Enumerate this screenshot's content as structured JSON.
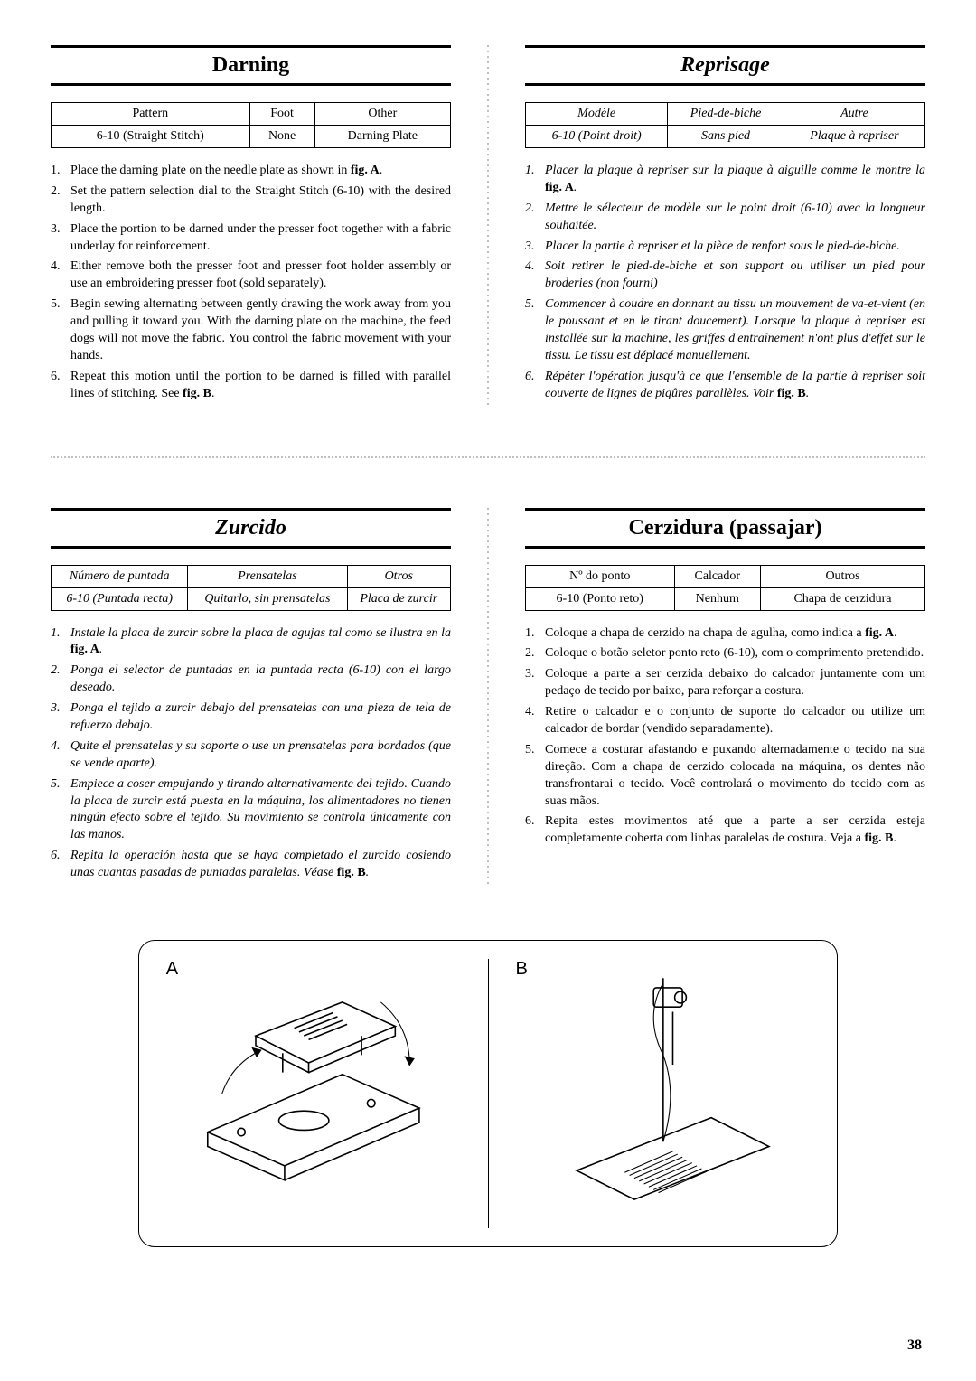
{
  "sections": {
    "darning": {
      "title": "Darning",
      "title_style": "normal",
      "table_style": "normal",
      "steps_style": "normal",
      "table": {
        "headers": [
          "Pattern",
          "Foot",
          "Other"
        ],
        "row": [
          "6-10  (Straight Stitch)",
          "None",
          "Darning Plate"
        ]
      },
      "steps": [
        "Place the darning plate on the needle plate as shown in <b>fig. A</b>.",
        "Set the pattern selection dial to the Straight Stitch (6-10) with the desired length.",
        "Place the portion to be darned under the presser foot together with a fabric underlay for reinforcement.",
        "Either remove both the presser foot and presser foot holder assembly or use an embroidering presser foot (sold separately).",
        "Begin sewing alternating between gently drawing the work away from you and pulling it toward you. With the darning plate on the machine, the feed dogs will not move the fabric. You control the fabric movement with your hands.",
        "Repeat this motion until the portion to be darned is filled with parallel lines of stitching. See <b>fig. B</b>."
      ]
    },
    "reprisage": {
      "title": "Reprisage",
      "title_style": "italic",
      "table_style": "italic",
      "steps_style": "italic",
      "table": {
        "headers": [
          "Modèle",
          "Pied-de-biche",
          "Autre"
        ],
        "row": [
          "6-10  (Point droit)",
          "Sans pied",
          "Plaque à repriser"
        ]
      },
      "steps": [
        "Placer la plaque à repriser sur la plaque à aiguille comme le montre la <b>fig. A</b>.",
        "Mettre le sélecteur de modèle sur le point droit (6-10) avec la longueur souhaitée.",
        "Placer la partie à repriser et la pièce de renfort sous le pied-de-biche.",
        "Soit retirer le pied-de-biche et son support ou utiliser un pied pour broderies (non fourni)",
        "Commencer à coudre en donnant au tissu un mouvement de va-et-vient (en le poussant et en le tirant doucement). Lorsque la plaque à repriser est installée sur la machine, les griffes d'entraînement n'ont plus d'effet sur le tissu. Le tissu est déplacé manuellement.",
        "Répéter l'opération jusqu'à ce que l'ensemble de la partie à repriser soit couverte de lignes de piqûres parallèles. Voir <b>fig. B</b>."
      ]
    },
    "zurcido": {
      "title": "Zurcido",
      "title_style": "italic",
      "table_style": "italic",
      "steps_style": "italic",
      "table": {
        "headers": [
          "Número de puntada",
          "Prensatelas",
          "Otros"
        ],
        "row": [
          "6-10  (Puntada recta)",
          "Quitarlo, sin prensatelas",
          "Placa de zurcir"
        ]
      },
      "steps": [
        "Instale la placa de zurcir sobre la placa de agujas tal como se ilustra en la <b>fig. A</b>.",
        "Ponga el selector de puntadas en la puntada recta (6-10) con el largo deseado.",
        "Ponga el tejido a zurcir debajo del prensatelas con una pieza de tela de refuerzo debajo.",
        "Quite el prensatelas y su soporte o use un prensatelas para bordados (que se vende aparte).",
        "Empiece a coser empujando y tirando alternativamente del tejido. Cuando la placa de zurcir está puesta en la máquina, los alimentadores no tienen ningún efecto sobre el tejido. Su movimiento se controla únicamente con las manos.",
        "Repita la operación hasta que se haya completado el zurcido cosiendo unas cuantas pasadas de puntadas paralelas. Véase <b>fig. B</b>."
      ]
    },
    "cerzidura": {
      "title": "Cerzidura (passajar)",
      "title_style": "normal",
      "table_style": "normal",
      "steps_style": "normal",
      "table": {
        "headers": [
          "Nº do ponto",
          "Calcador",
          "Outros"
        ],
        "row": [
          "6-10  (Ponto reto)",
          "Nenhum",
          "Chapa de cerzidura"
        ]
      },
      "steps": [
        "Coloque a chapa de cerzido na chapa de agulha, como indica a <b>fig. A</b>.",
        "Coloque o botão seletor ponto reto (6-10), com o comprimento pretendido.",
        "Coloque a parte a ser cerzida debaixo do calcador juntamente com um pedaço de tecido por baixo, para reforçar a costura.",
        "Retire o calcador e o conjunto de suporte do calcador ou utilize um calcador de bordar (vendido separadamente).",
        "Comece a costurar afastando e puxando alternadamente o tecido na sua direção. Com a chapa de cerzido colocada na máquina, os dentes não transfrontarai o tecido. Você controlará o movimento do tecido com as suas mãos.",
        "Repita estes movimentos até que a parte a ser cerzida esteja completamente coberta com linhas paralelas de costura. Veja a <b>fig. B</b>."
      ]
    }
  },
  "figures": {
    "labelA": "A",
    "labelB": "B"
  },
  "page_number": "38",
  "colors": {
    "text": "#000000",
    "background": "#ffffff",
    "dotted": "#c0c0c0",
    "rule": "#000000"
  },
  "typography": {
    "title_fontsize": 24,
    "body_fontsize": 14,
    "fig_label_fontsize": 20
  }
}
